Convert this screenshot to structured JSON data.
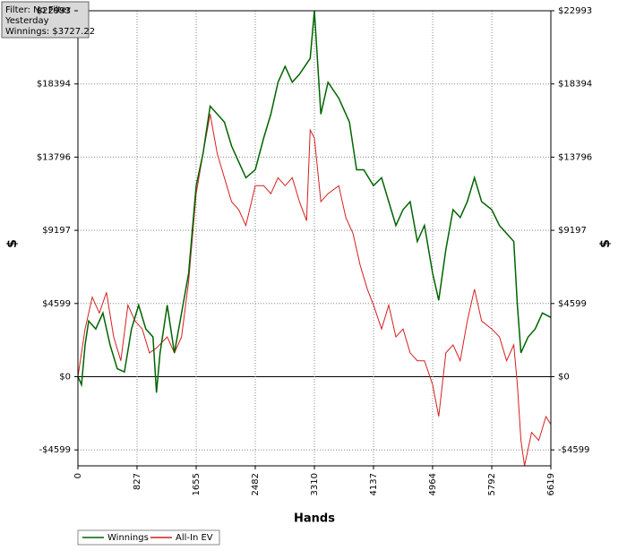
{
  "filter_box": {
    "lines": [
      "Filter: No Filter",
      "Yesterday",
      "Winnings: $3727.22"
    ]
  },
  "chart_data": {
    "type": "line",
    "xlabel": "Hands",
    "ylabel": "$",
    "y2label": "$",
    "xlim": [
      0,
      6619
    ],
    "xticks": [
      0,
      827,
      1655,
      2482,
      3310,
      4137,
      4964,
      5792,
      6619
    ],
    "ylim": [
      -5600,
      22993
    ],
    "yticks": [
      {
        "value": -4599,
        "label": "-$4599"
      },
      {
        "value": 0,
        "label": "$0"
      },
      {
        "value": 4599,
        "label": "$4599"
      },
      {
        "value": 9197,
        "label": "$9197"
      },
      {
        "value": 13796,
        "label": "$13796"
      },
      {
        "value": 18394,
        "label": "$18394"
      },
      {
        "value": 22993,
        "label": "$22993"
      }
    ],
    "grid": true,
    "series": [
      {
        "name": "Winnings",
        "color": "#006400",
        "x": [
          0,
          50,
          100,
          150,
          250,
          350,
          450,
          550,
          650,
          750,
          850,
          950,
          1050,
          1100,
          1150,
          1250,
          1350,
          1450,
          1550,
          1655,
          1750,
          1850,
          1950,
          2050,
          2150,
          2250,
          2350,
          2482,
          2600,
          2700,
          2800,
          2900,
          3000,
          3100,
          3250,
          3310,
          3400,
          3500,
          3650,
          3800,
          3900,
          4000,
          4137,
          4250,
          4350,
          4450,
          4550,
          4650,
          4750,
          4850,
          4964,
          5050,
          5150,
          5250,
          5350,
          5450,
          5550,
          5650,
          5792,
          5900,
          6000,
          6100,
          6150,
          6200,
          6300,
          6400,
          6500,
          6619
        ],
        "values": [
          0,
          -500,
          2000,
          3500,
          3000,
          4000,
          2000,
          500,
          300,
          3000,
          4500,
          3000,
          2500,
          -1000,
          1500,
          4500,
          1500,
          4000,
          6500,
          12000,
          14000,
          17000,
          16500,
          16000,
          14500,
          13500,
          12500,
          13000,
          15000,
          16500,
          18500,
          19500,
          18500,
          19000,
          20000,
          22993,
          16500,
          18500,
          17500,
          16000,
          13000,
          13000,
          12000,
          12500,
          11000,
          9500,
          10500,
          11000,
          8500,
          9500,
          6500,
          4800,
          8000,
          10500,
          10000,
          11000,
          12500,
          11000,
          10500,
          9500,
          9000,
          8500,
          4500,
          1500,
          2500,
          3000,
          4000,
          3727
        ]
      },
      {
        "name": "All-In EV",
        "color": "#d42020",
        "x": [
          0,
          100,
          200,
          300,
          400,
          500,
          600,
          700,
          800,
          900,
          1000,
          1100,
          1250,
          1350,
          1450,
          1550,
          1655,
          1750,
          1850,
          1950,
          2050,
          2150,
          2250,
          2350,
          2482,
          2600,
          2700,
          2800,
          2900,
          3000,
          3100,
          3200,
          3250,
          3310,
          3400,
          3500,
          3650,
          3750,
          3850,
          3950,
          4050,
          4137,
          4250,
          4350,
          4450,
          4550,
          4650,
          4750,
          4850,
          4964,
          5050,
          5150,
          5250,
          5350,
          5450,
          5550,
          5650,
          5792,
          5900,
          6000,
          6100,
          6150,
          6200,
          6250,
          6350,
          6450,
          6550,
          6619
        ],
        "values": [
          0,
          3000,
          5000,
          4000,
          5300,
          2500,
          1000,
          4500,
          3500,
          3000,
          1500,
          1800,
          2500,
          1500,
          2500,
          6000,
          11500,
          14000,
          16500,
          14000,
          12500,
          11000,
          10500,
          9500,
          12000,
          12000,
          11500,
          12500,
          12000,
          12500,
          11000,
          9800,
          15500,
          15000,
          11000,
          11500,
          12000,
          10000,
          9000,
          7000,
          5500,
          4500,
          3000,
          4500,
          2500,
          3000,
          1500,
          1000,
          1000,
          -500,
          -2500,
          1500,
          2000,
          1000,
          3500,
          5500,
          3500,
          3000,
          2500,
          1000,
          2000,
          -500,
          -4000,
          -5600,
          -3500,
          -4000,
          -2500,
          -3000
        ]
      }
    ]
  }
}
